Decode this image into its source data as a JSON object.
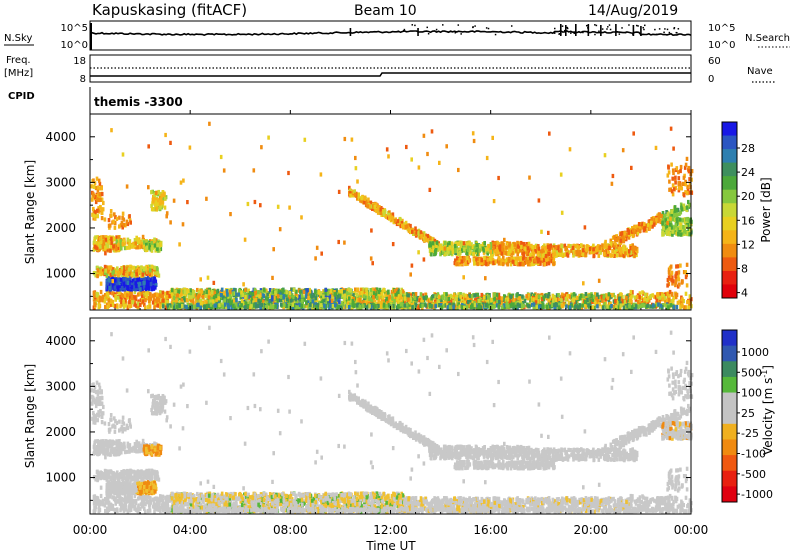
{
  "header": {
    "station": "Kapuskasing (fitACF)",
    "beam": "Beam 10",
    "date": "14/Aug/2019"
  },
  "time_axis": {
    "ticks": [
      "00:00",
      "04:00",
      "08:00",
      "12:00",
      "16:00",
      "20:00",
      "00:00"
    ],
    "label": "Time UT"
  },
  "noise_panel": {
    "left_label": "N.Sky",
    "right_label": "N.Search",
    "left_ticks": [
      "10^5",
      "10^0"
    ],
    "right_ticks": [
      "10^5",
      "10^0"
    ]
  },
  "freq_panel": {
    "left_label_line1": "Freq.",
    "left_label_line2": "[MHz]",
    "right_label": "Nave",
    "left_ticks": [
      "18",
      "8"
    ],
    "right_ticks": [
      "60",
      "0"
    ]
  },
  "cpid": {
    "label": "CPID",
    "value": "themis -3300"
  },
  "chart_data": [
    {
      "type": "heatmap",
      "title": "",
      "xlabel": "Time UT",
      "ylabel": "Slant Range [km]",
      "xlim": [
        0,
        24
      ],
      "ylim": [
        200,
        4500
      ],
      "yticks": [
        "1000",
        "2000",
        "3000",
        "4000"
      ],
      "colorbar": {
        "label": "Power [dB]",
        "ticks": [
          "4",
          "8",
          "12",
          "16",
          "20",
          "24",
          "28"
        ],
        "colors": [
          "#1818e6",
          "#2b56c2",
          "#2e7fb0",
          "#3e8f5e",
          "#4ca83a",
          "#86c83e",
          "#c8d836",
          "#e8d020",
          "#f5b418",
          "#f08c10",
          "#ee5a10",
          "#e82010",
          "#e0000a"
        ]
      }
    },
    {
      "type": "heatmap",
      "title": "",
      "xlabel": "Time UT",
      "ylabel": "Slant Range [km]",
      "xlim": [
        0,
        24
      ],
      "ylim": [
        200,
        4500
      ],
      "yticks": [
        "1000",
        "2000",
        "3000",
        "4000"
      ],
      "colorbar": {
        "label": "Velocity [m s^-1]",
        "ticks": [
          "1000",
          "500",
          "100",
          "25",
          "-25",
          "-100",
          "-500",
          "-1000"
        ],
        "colors": [
          "#2030c8",
          "#3058b0",
          "#3c8a60",
          "#56b83a",
          "#c4c4c4",
          "#c4c4c4",
          "#f0b020",
          "#f08a10",
          "#f05810",
          "#e82010",
          "#e00010"
        ]
      }
    }
  ]
}
